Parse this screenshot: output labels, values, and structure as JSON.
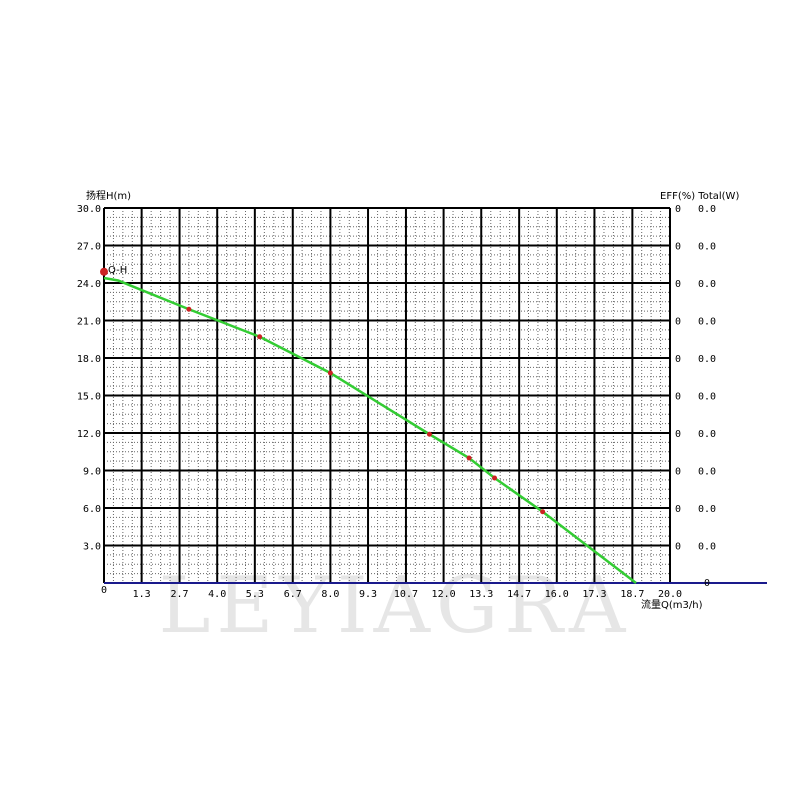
{
  "chart_data": {
    "type": "line",
    "watermark": "LEYIAGRA",
    "left_axis_title": "扬程H(m)",
    "right_axis_title": "EFF(%) Total(W)",
    "x_axis_title": "流量Q(m3/h)",
    "curve_label": "Q-H",
    "x_ticks": [
      "0",
      "1.3",
      "2.7",
      "4.0",
      "5.3",
      "6.7",
      "8.0",
      "9.3",
      "10.7",
      "12.0",
      "13.3",
      "14.7",
      "16.0",
      "17.3",
      "18.7",
      "20.0"
    ],
    "x_tick_values": [
      0,
      1.33,
      2.67,
      4.0,
      5.33,
      6.67,
      8.0,
      9.33,
      10.67,
      12.0,
      13.33,
      14.67,
      16.0,
      17.33,
      18.67,
      20.0
    ],
    "y_ticks": [
      "30.0",
      "27.0",
      "24.0",
      "21.0",
      "18.0",
      "15.0",
      "12.0",
      "9.0",
      "6.0",
      "3.0"
    ],
    "y_tick_values": [
      30,
      27,
      24,
      21,
      18,
      15,
      12,
      9,
      6,
      3
    ],
    "eff_ticks": [
      "0",
      "0",
      "0",
      "0",
      "0",
      "0",
      "0",
      "0",
      "0",
      "0"
    ],
    "total_ticks": [
      "0.0",
      "0.0",
      "0.0",
      "0.0",
      "0.0",
      "0.0",
      "0.0",
      "0.0",
      "0.0",
      "0.0"
    ],
    "right_baseline_label": "0",
    "xlim": [
      0,
      20
    ],
    "ylim": [
      0,
      30
    ],
    "grid": true,
    "series": [
      {
        "name": "Q-H",
        "color": "#33cc33",
        "x": [
          0,
          0.5,
          3.0,
          5.5,
          8.0,
          11.5,
          12.9,
          13.8,
          15.5,
          18.8
        ],
        "y": [
          24.4,
          24.2,
          21.9,
          19.7,
          16.8,
          11.9,
          10.0,
          8.4,
          5.7,
          0
        ]
      }
    ],
    "measured_points": {
      "color": "#cc2222",
      "x": [
        0,
        3.0,
        5.5,
        8.0,
        11.5,
        12.9,
        13.8,
        15.5
      ],
      "y": [
        24.9,
        21.9,
        19.7,
        16.8,
        11.9,
        10.0,
        8.4,
        5.7
      ]
    },
    "colors": {
      "grid_major": "#000000",
      "grid_minor": "#666666",
      "baseline": "#1a1a8c",
      "watermark": "#e6e6e6"
    }
  }
}
